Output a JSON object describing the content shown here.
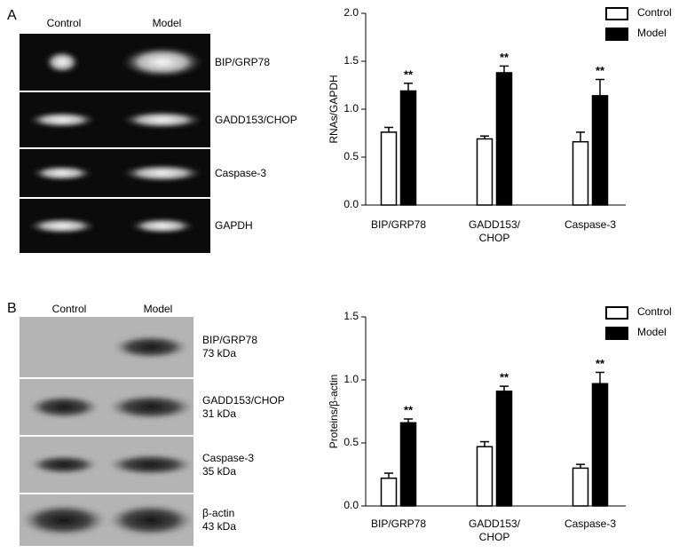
{
  "panels": [
    "A",
    "B"
  ],
  "gels": [
    {
      "columns": [
        "Control",
        "Model"
      ],
      "bands": [
        "BIP/GRP78",
        "GADD153/CHOP",
        "Caspase-3",
        "GAPDH"
      ]
    },
    {
      "columns": [
        "Control",
        "Model"
      ],
      "bands": [
        "BIP/GRP78\n73 kDa",
        "GADD153/CHOP\n31 kDa",
        "Caspase-3\n35 kDa",
        "β-actin\n43 kDa"
      ]
    }
  ],
  "chart_data": [
    {
      "type": "bar",
      "y_label": "RNAs/GAPDH",
      "categories": [
        "BIP/GRP78",
        "GADD153/\nCHOP",
        "Caspase-3"
      ],
      "series": [
        {
          "name": "Control",
          "color": "#ffffff",
          "values": [
            0.76,
            0.69,
            0.66
          ],
          "errors": [
            0.05,
            0.03,
            0.1
          ]
        },
        {
          "name": "Model",
          "color": "#000000",
          "values": [
            1.19,
            1.38,
            1.14
          ],
          "errors": [
            0.08,
            0.07,
            0.17
          ],
          "annotations": [
            "**",
            "**",
            "**"
          ]
        }
      ],
      "ylim": [
        0,
        2
      ],
      "yticks": [
        {
          "value": 0,
          "label": "0.0"
        },
        0.5,
        {
          "value": 1,
          "label": "1.0"
        },
        1.5,
        {
          "value": 2,
          "label": "2.0"
        }
      ],
      "legend": "top-right"
    },
    {
      "type": "bar",
      "y_label": "Proteins/β-actin",
      "categories": [
        "BIP/GRP78",
        "GADD153/\nCHOP",
        "Caspase-3"
      ],
      "series": [
        {
          "name": "Control",
          "color": "#ffffff",
          "values": [
            0.22,
            0.47,
            0.3
          ],
          "errors": [
            0.04,
            0.04,
            0.03
          ]
        },
        {
          "name": "Model",
          "color": "#000000",
          "values": [
            0.66,
            0.91,
            0.97
          ],
          "errors": [
            0.03,
            0.04,
            0.09
          ],
          "annotations": [
            "**",
            "**",
            "**"
          ]
        }
      ],
      "ylim": [
        0,
        1.5
      ],
      "yticks": [
        {
          "value": 0,
          "label": "0.0"
        },
        0.5,
        {
          "value": 1,
          "label": "1.0"
        },
        1.5
      ],
      "legend": "top-right"
    }
  ]
}
